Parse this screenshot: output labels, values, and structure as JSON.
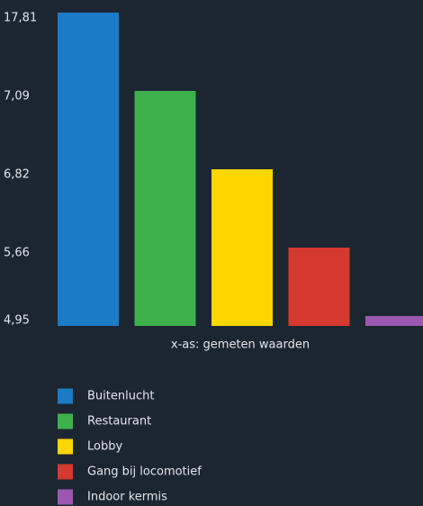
{
  "chart_data": {
    "type": "bar",
    "x_label": "x-as: gemeten waarden",
    "categories": [
      "Buitenlucht",
      "Restaurant",
      "Lobby",
      "Gang bij locomotief",
      "Indoor kermis"
    ],
    "values": [
      17.81,
      7.09,
      6.82,
      5.66,
      5.04
    ],
    "colors": [
      "#1b7bc4",
      "#3db14c",
      "#ffd600",
      "#d5392f",
      "#9c58b0"
    ],
    "ylim": [
      4.95,
      17.81
    ],
    "yticks": [
      {
        "value": 17.81,
        "label": "17,81"
      },
      {
        "value": 7.09,
        "label": "7,09"
      },
      {
        "value": 6.82,
        "label": "6,82"
      },
      {
        "value": 5.66,
        "label": "5,66"
      },
      {
        "value": 4.95,
        "label": "4,95"
      }
    ],
    "grid": false,
    "legend": "bottom"
  }
}
